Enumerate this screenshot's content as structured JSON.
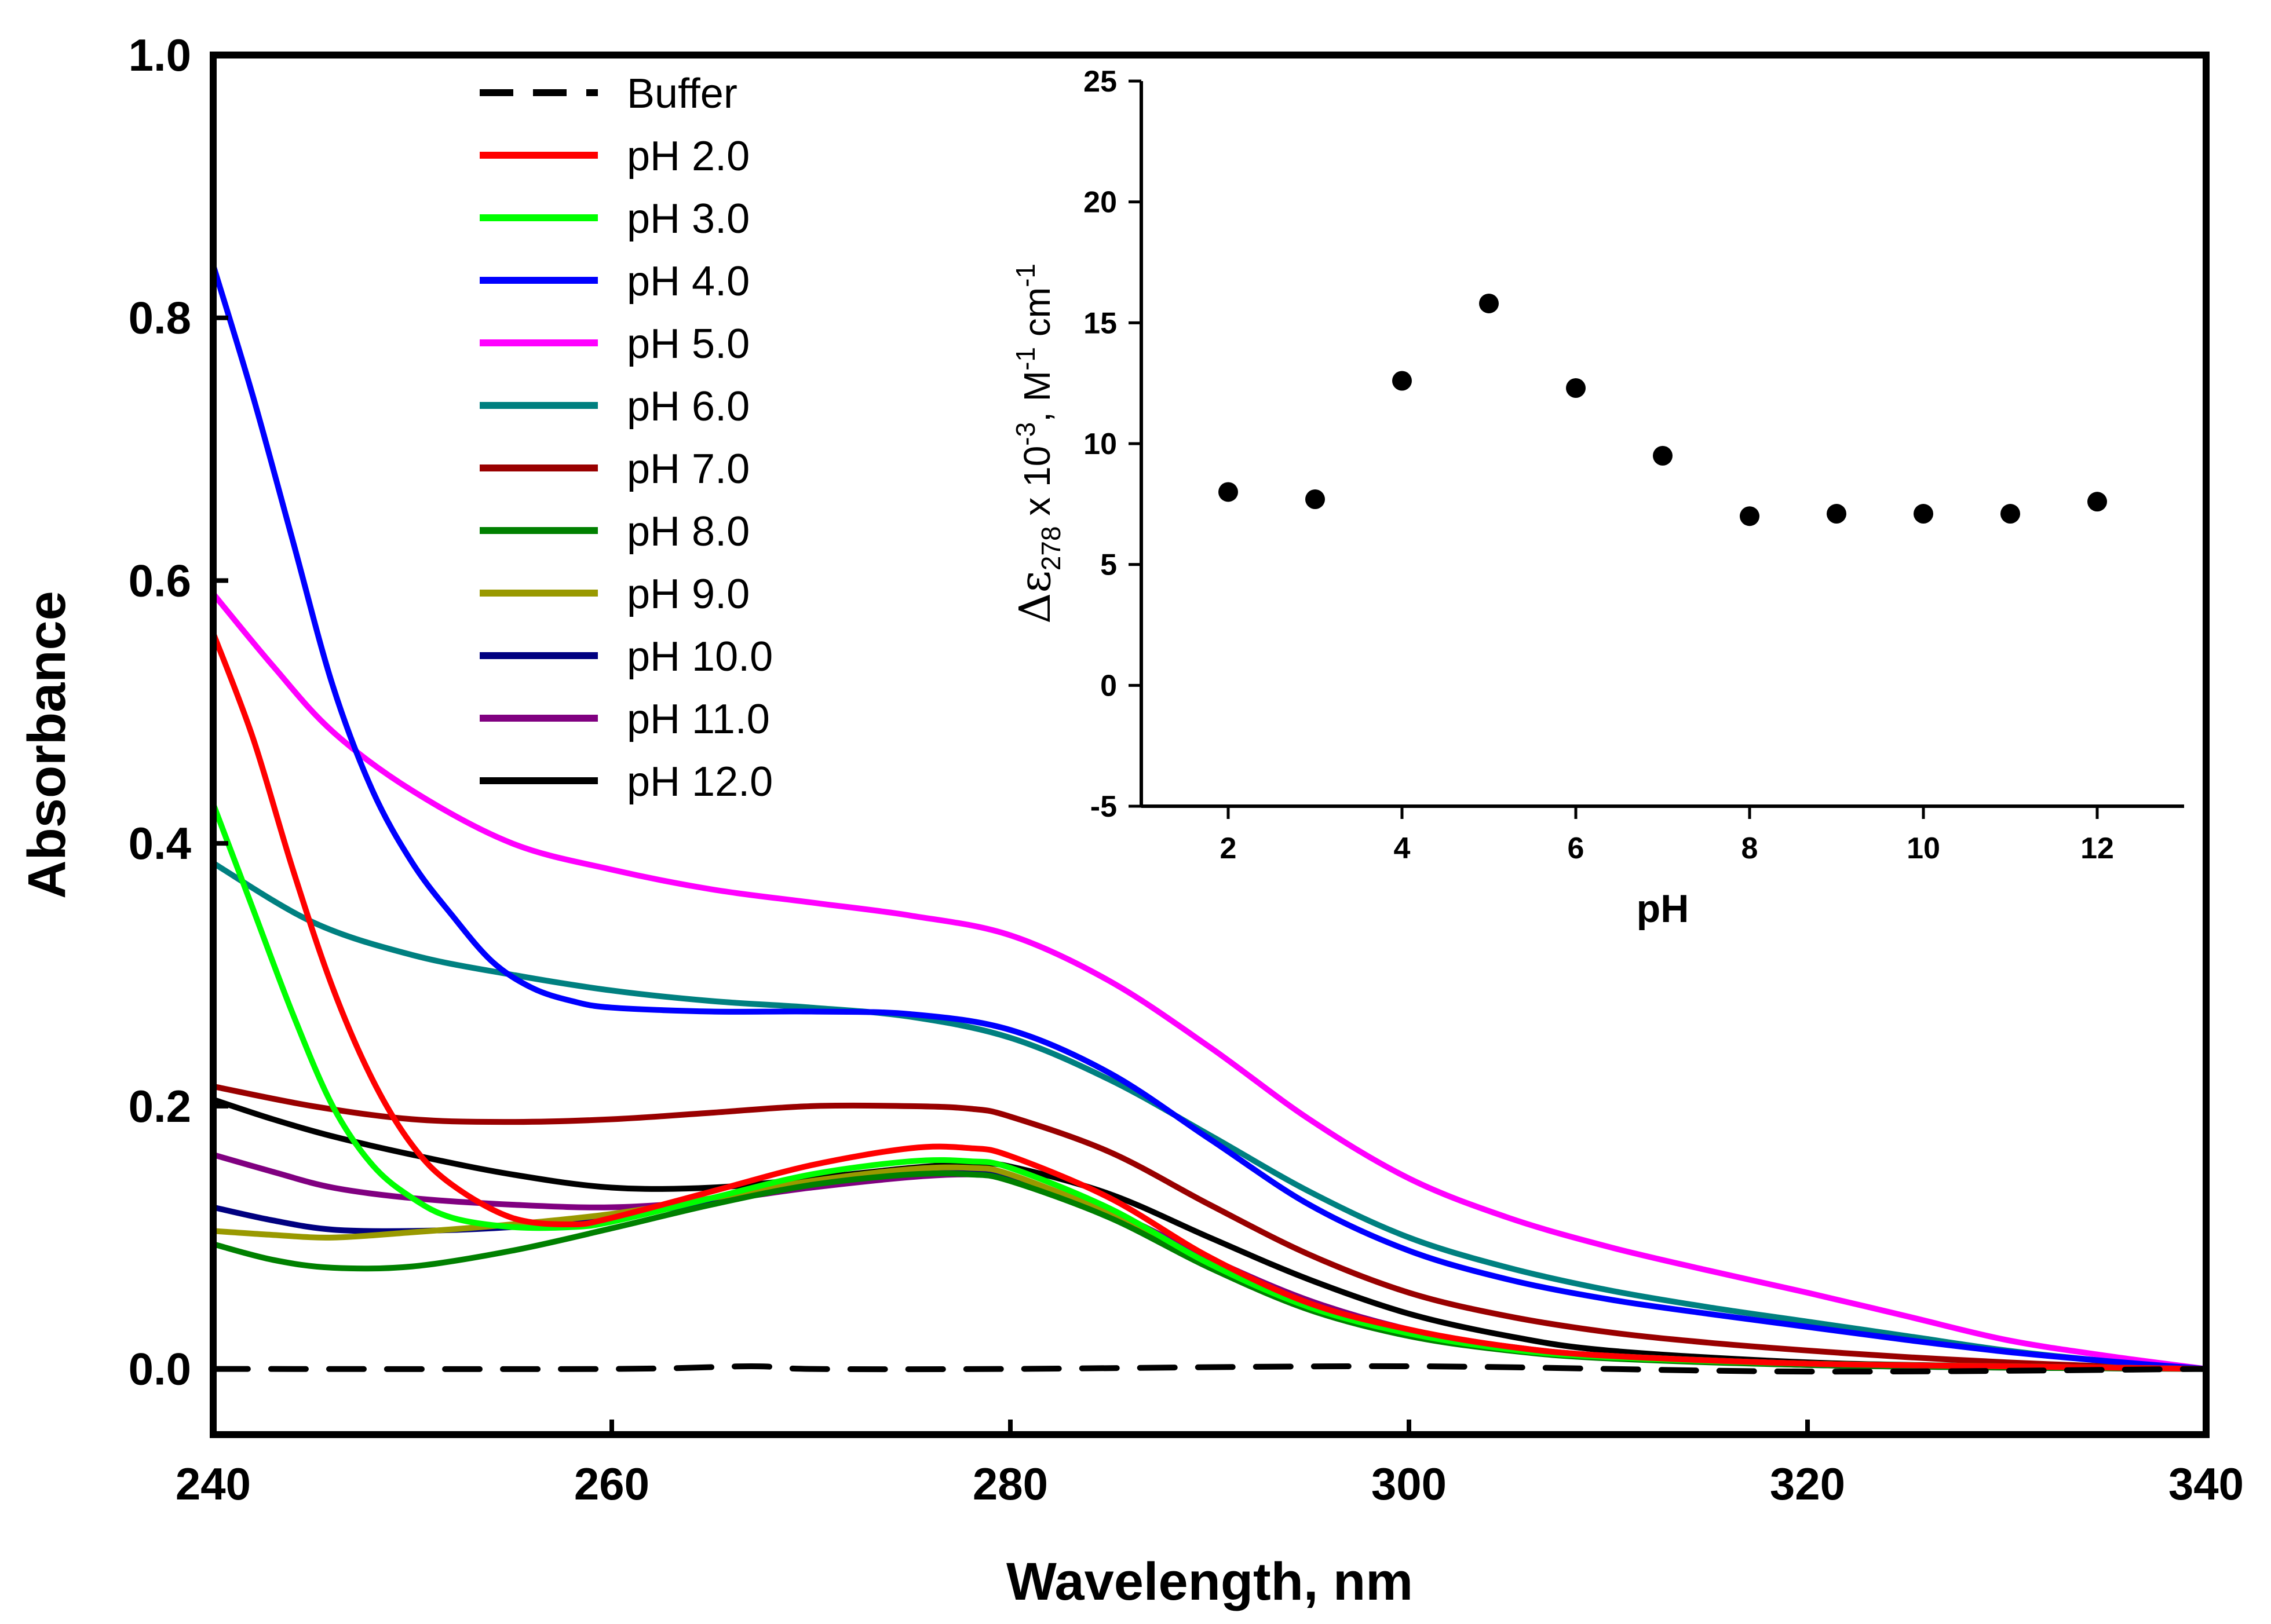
{
  "chart_data": [
    {
      "type": "line",
      "title": "",
      "xlabel": "Wavelength, nm",
      "ylabel": "Absorbance",
      "xlim": [
        240,
        340
      ],
      "ylim": [
        -0.05,
        1.0
      ],
      "xticks": [
        240,
        260,
        280,
        300,
        320,
        340
      ],
      "yticks": [
        0.0,
        0.2,
        0.4,
        0.6,
        0.8,
        1.0
      ],
      "xtick_labels": [
        "240",
        "260",
        "280",
        "300",
        "320",
        "340"
      ],
      "ytick_labels": [
        "0.0",
        "0.2",
        "0.4",
        "0.6",
        "0.8",
        "1.0"
      ],
      "grid": false,
      "legend_position": "top-left",
      "series": [
        {
          "name": "Buffer",
          "color": "#000000",
          "dashed": true,
          "x": [
            240,
            260,
            267,
            270,
            280,
            300,
            320,
            340
          ],
          "y": [
            0.0,
            0.0,
            0.002,
            0.0,
            0.0,
            0.002,
            -0.002,
            0.0
          ]
        },
        {
          "name": "pH 2.0",
          "color": "#ff0000",
          "dashed": false,
          "x": [
            240,
            242,
            244,
            246,
            248,
            250,
            252,
            255,
            258,
            260,
            265,
            270,
            275,
            278,
            280,
            285,
            290,
            295,
            300,
            305,
            310,
            320,
            330,
            340
          ],
          "y": [
            0.56,
            0.48,
            0.38,
            0.29,
            0.22,
            0.17,
            0.14,
            0.115,
            0.11,
            0.115,
            0.135,
            0.155,
            0.168,
            0.168,
            0.162,
            0.13,
            0.085,
            0.05,
            0.03,
            0.017,
            0.01,
            0.004,
            0.002,
            0.0
          ]
        },
        {
          "name": "pH 3.0",
          "color": "#00ff00",
          "dashed": false,
          "x": [
            240,
            242,
            244,
            246,
            248,
            250,
            252,
            255,
            258,
            260,
            265,
            270,
            275,
            278,
            280,
            285,
            290,
            295,
            300,
            305,
            310,
            320,
            330,
            340
          ],
          "y": [
            0.43,
            0.35,
            0.27,
            0.2,
            0.155,
            0.13,
            0.115,
            0.108,
            0.108,
            0.112,
            0.13,
            0.148,
            0.158,
            0.158,
            0.153,
            0.122,
            0.08,
            0.047,
            0.027,
            0.015,
            0.009,
            0.004,
            0.002,
            0.0
          ]
        },
        {
          "name": "pH 4.0",
          "color": "#0000ff",
          "dashed": false,
          "x": [
            240,
            242,
            244,
            246,
            248,
            250,
            252,
            254,
            256,
            258,
            260,
            265,
            270,
            275,
            280,
            285,
            290,
            295,
            300,
            305,
            310,
            315,
            320,
            325,
            330,
            335,
            340
          ],
          "y": [
            0.84,
            0.74,
            0.63,
            0.52,
            0.44,
            0.385,
            0.345,
            0.31,
            0.29,
            0.28,
            0.275,
            0.272,
            0.272,
            0.27,
            0.258,
            0.225,
            0.175,
            0.125,
            0.09,
            0.068,
            0.053,
            0.042,
            0.032,
            0.022,
            0.013,
            0.006,
            0.0
          ]
        },
        {
          "name": "pH 5.0",
          "color": "#ff00ff",
          "dashed": false,
          "x": [
            240,
            243,
            246,
            250,
            255,
            260,
            265,
            270,
            275,
            280,
            285,
            290,
            295,
            300,
            305,
            310,
            315,
            320,
            325,
            330,
            335,
            340
          ],
          "y": [
            0.59,
            0.535,
            0.485,
            0.44,
            0.4,
            0.38,
            0.365,
            0.355,
            0.345,
            0.33,
            0.295,
            0.245,
            0.19,
            0.145,
            0.115,
            0.093,
            0.075,
            0.058,
            0.04,
            0.022,
            0.01,
            0.0
          ]
        },
        {
          "name": "pH 6.0",
          "color": "#008080",
          "dashed": false,
          "x": [
            240,
            245,
            250,
            255,
            260,
            265,
            270,
            275,
            280,
            285,
            290,
            295,
            300,
            305,
            310,
            315,
            320,
            325,
            330,
            335,
            340
          ],
          "y": [
            0.385,
            0.34,
            0.315,
            0.3,
            0.288,
            0.28,
            0.275,
            0.268,
            0.252,
            0.22,
            0.178,
            0.135,
            0.1,
            0.077,
            0.06,
            0.047,
            0.036,
            0.025,
            0.014,
            0.006,
            0.0
          ]
        },
        {
          "name": "pH 7.0",
          "color": "#990000",
          "dashed": false,
          "x": [
            240,
            245,
            250,
            255,
            260,
            265,
            270,
            275,
            278,
            280,
            285,
            290,
            295,
            300,
            305,
            310,
            315,
            320,
            325,
            330,
            335,
            340
          ],
          "y": [
            0.215,
            0.2,
            0.19,
            0.188,
            0.19,
            0.195,
            0.2,
            0.2,
            0.198,
            0.192,
            0.165,
            0.125,
            0.087,
            0.058,
            0.04,
            0.028,
            0.02,
            0.014,
            0.009,
            0.005,
            0.002,
            0.0
          ]
        },
        {
          "name": "pH 8.0",
          "color": "#008000",
          "dashed": false,
          "x": [
            240,
            243,
            246,
            250,
            255,
            260,
            265,
            270,
            275,
            278,
            280,
            285,
            290,
            295,
            300,
            305,
            310,
            320,
            330,
            340
          ],
          "y": [
            0.095,
            0.083,
            0.077,
            0.078,
            0.09,
            0.107,
            0.125,
            0.14,
            0.148,
            0.148,
            0.143,
            0.115,
            0.077,
            0.045,
            0.025,
            0.014,
            0.008,
            0.003,
            0.001,
            0.0
          ]
        },
        {
          "name": "pH 9.0",
          "color": "#999900",
          "dashed": false,
          "x": [
            240,
            243,
            246,
            250,
            255,
            260,
            265,
            270,
            275,
            278,
            280,
            285,
            290,
            295,
            300,
            305,
            310,
            320,
            330,
            340
          ],
          "y": [
            0.105,
            0.102,
            0.1,
            0.104,
            0.11,
            0.118,
            0.13,
            0.143,
            0.152,
            0.153,
            0.148,
            0.118,
            0.08,
            0.048,
            0.028,
            0.016,
            0.01,
            0.004,
            0.002,
            0.0
          ]
        },
        {
          "name": "pH 10.0",
          "color": "#000080",
          "dashed": false,
          "x": [
            240,
            243,
            246,
            250,
            255,
            260,
            265,
            270,
            275,
            278,
            280,
            285,
            290,
            295,
            300,
            305,
            310,
            320,
            330,
            340
          ],
          "y": [
            0.123,
            0.113,
            0.106,
            0.105,
            0.108,
            0.115,
            0.128,
            0.142,
            0.15,
            0.151,
            0.146,
            0.117,
            0.078,
            0.047,
            0.027,
            0.015,
            0.009,
            0.003,
            0.001,
            0.0
          ]
        },
        {
          "name": "pH 11.0",
          "color": "#800080",
          "dashed": false,
          "x": [
            240,
            243,
            246,
            250,
            255,
            260,
            265,
            270,
            275,
            278,
            280,
            285,
            290,
            295,
            300,
            305,
            310,
            320,
            330,
            340
          ],
          "y": [
            0.163,
            0.15,
            0.138,
            0.13,
            0.125,
            0.123,
            0.128,
            0.138,
            0.146,
            0.148,
            0.145,
            0.12,
            0.084,
            0.052,
            0.03,
            0.017,
            0.01,
            0.004,
            0.002,
            0.0
          ]
        },
        {
          "name": "pH 12.0",
          "color": "#000000",
          "dashed": false,
          "x": [
            240,
            243,
            246,
            250,
            255,
            260,
            265,
            270,
            275,
            278,
            280,
            285,
            290,
            295,
            300,
            305,
            310,
            320,
            330,
            340
          ],
          "y": [
            0.205,
            0.19,
            0.177,
            0.163,
            0.148,
            0.138,
            0.138,
            0.145,
            0.153,
            0.156,
            0.154,
            0.133,
            0.1,
            0.068,
            0.042,
            0.025,
            0.014,
            0.005,
            0.002,
            0.0
          ]
        }
      ]
    },
    {
      "type": "scatter",
      "title": "",
      "xlabel": "pH",
      "ylabel_parts": {
        "delta": "Δε",
        "sub": "278",
        "mid": " x 10",
        "sup1": "-3",
        "mid2": ", M",
        "sup2": "-1",
        "tail": " cm",
        "sup3": "-1"
      },
      "xlim": [
        1,
        13
      ],
      "ylim": [
        -5,
        25
      ],
      "xticks": [
        2,
        4,
        6,
        8,
        10,
        12
      ],
      "yticks": [
        -5,
        0,
        5,
        10,
        15,
        20,
        25
      ],
      "xtick_labels": [
        "2",
        "4",
        "6",
        "8",
        "10",
        "12"
      ],
      "ytick_labels": [
        "-5",
        "0",
        "5",
        "10",
        "15",
        "20",
        "25"
      ],
      "grid": false,
      "marker_color": "#000000",
      "x": [
        2,
        3,
        4,
        5,
        6,
        7,
        8,
        9,
        10,
        11,
        12
      ],
      "y": [
        8.0,
        7.7,
        12.6,
        15.8,
        12.3,
        9.5,
        7.0,
        7.1,
        7.1,
        7.1,
        7.6
      ]
    }
  ]
}
